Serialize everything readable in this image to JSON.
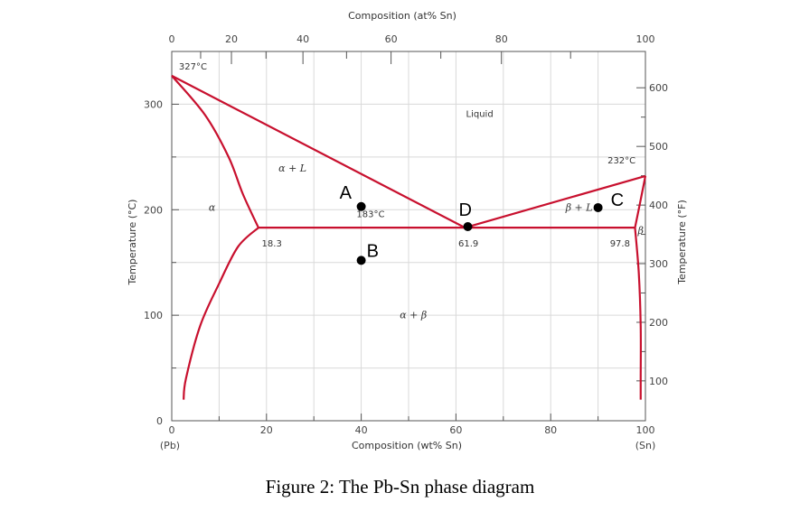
{
  "chart_data": {
    "type": "line",
    "title": "Composition (at% Sn)",
    "xlabel": "Composition (wt% Sn)",
    "ylabel": "Temperature (°C)",
    "ylabel_right": "Temperature (°F)",
    "xlim": [
      0,
      100
    ],
    "ylim": [
      0,
      350
    ],
    "x_ticks": [
      "0",
      "20",
      "40",
      "60",
      "80",
      "100"
    ],
    "x_ticks_minor": [
      10,
      30,
      50,
      70,
      90
    ],
    "x_end_labels": [
      "(Pb)",
      "(Sn)"
    ],
    "y_ticks": [
      "0",
      "100",
      "200",
      "300"
    ],
    "top_ticks": [
      {
        "label": "0",
        "wt": 0
      },
      {
        "label": "20",
        "wt": 12.6
      },
      {
        "label": "40",
        "wt": 27.7
      },
      {
        "label": "60",
        "wt": 46.3
      },
      {
        "label": "80",
        "wt": 69.6
      },
      {
        "label": "100",
        "wt": 100
      }
    ],
    "top_ticks_minor": [
      6.1,
      19.9,
      36.9,
      56.8,
      84.2
    ],
    "right_ticks": [
      {
        "label": "100",
        "c": 37.8
      },
      {
        "label": "200",
        "c": 93.3
      },
      {
        "label": "300",
        "c": 148.9
      },
      {
        "label": "400",
        "c": 204.4
      },
      {
        "label": "500",
        "c": 260.0
      },
      {
        "label": "600",
        "c": 315.6
      }
    ],
    "grid": true,
    "series": [
      {
        "id": "liquidus-left",
        "points": [
          [
            0,
            327
          ],
          [
            61.9,
            183
          ]
        ]
      },
      {
        "id": "liquidus-right",
        "points": [
          [
            61.9,
            183
          ],
          [
            100,
            232
          ]
        ]
      },
      {
        "id": "solidus-alpha",
        "points": [
          [
            0,
            327
          ],
          [
            7,
            290
          ],
          [
            12,
            250
          ],
          [
            15,
            215
          ],
          [
            18.3,
            183
          ]
        ]
      },
      {
        "id": "solvus-alpha",
        "points": [
          [
            18.3,
            183
          ],
          [
            14,
            165
          ],
          [
            10,
            130
          ],
          [
            6,
            90
          ],
          [
            3,
            40
          ],
          [
            2.5,
            20
          ]
        ]
      },
      {
        "id": "eutectic-isotherm",
        "points": [
          [
            18.3,
            183
          ],
          [
            97.8,
            183
          ]
        ]
      },
      {
        "id": "solidus-beta",
        "points": [
          [
            97.8,
            183
          ],
          [
            98.8,
            205
          ],
          [
            100,
            232
          ]
        ]
      },
      {
        "id": "solvus-beta",
        "points": [
          [
            97.8,
            183
          ],
          [
            98.6,
            140
          ],
          [
            99,
            90
          ],
          [
            99,
            40
          ],
          [
            99,
            20
          ]
        ]
      }
    ],
    "annotations": [
      {
        "text": "327°C",
        "x": 1.5,
        "y": 333
      },
      {
        "text": "232°C",
        "x": 92,
        "y": 244
      },
      {
        "text": "183°C",
        "x": 39,
        "y": 193
      },
      {
        "text": "18.3",
        "x": 19,
        "y": 165
      },
      {
        "text": "61.9",
        "x": 60.5,
        "y": 165
      },
      {
        "text": "97.8",
        "x": 92.5,
        "y": 165
      }
    ],
    "phase_labels": [
      {
        "text": "Liquid",
        "x": 65,
        "y": 288
      },
      {
        "text": "α + L",
        "x": 25.5,
        "y": 236
      },
      {
        "text": "α",
        "x": 8.5,
        "y": 199
      },
      {
        "text": "β + L",
        "x": 86,
        "y": 199
      },
      {
        "text": "β",
        "x": 99,
        "y": 177
      },
      {
        "text": "α + β",
        "x": 51,
        "y": 97
      }
    ],
    "points": [
      {
        "label": "A",
        "x": 40,
        "y": 203
      },
      {
        "label": "B",
        "x": 40,
        "y": 152
      },
      {
        "label": "C",
        "x": 90,
        "y": 202
      },
      {
        "label": "D",
        "x": 62.5,
        "y": 184
      }
    ],
    "line_color": "#c8102e",
    "grid_color": "#d9d9d9"
  },
  "caption": "Figure 2: The Pb-Sn phase diagram"
}
